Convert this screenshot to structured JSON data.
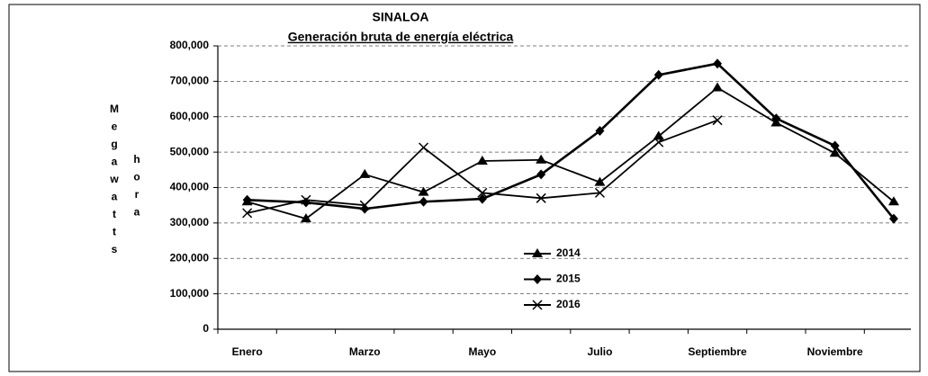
{
  "chart_data": {
    "type": "line",
    "title": "SINALOA",
    "subtitle": "Generación bruta de energía eléctrica",
    "y_label": [
      "Megawatts",
      "hora"
    ],
    "categories": [
      "Enero",
      null,
      "Marzo",
      null,
      "Mayo",
      null,
      "Julio",
      null,
      "Septiembre",
      null,
      "Noviembre",
      null
    ],
    "series": [
      {
        "name": "2014",
        "color": "#000000",
        "marker": "triangle",
        "values": [
          360000,
          312000,
          437000,
          387000,
          475000,
          478000,
          415000,
          545000,
          682000,
          583000,
          497000,
          360000
        ]
      },
      {
        "name": "2015",
        "color": "#000000",
        "marker": "diamond",
        "values": [
          365000,
          358000,
          340000,
          360000,
          368000,
          437000,
          560000,
          718000,
          750000,
          595000,
          518000,
          312000
        ]
      },
      {
        "name": "2016",
        "color": "#000000",
        "marker": "x",
        "values": [
          328000,
          365000,
          350000,
          513000,
          385000,
          370000,
          385000,
          528000,
          590000,
          null,
          null,
          null
        ]
      }
    ],
    "ylim": [
      0,
      800000
    ],
    "yticks": [
      0,
      {
        "value": 100000,
        "label": "100,000"
      },
      {
        "value": 200000,
        "label": "200,000"
      },
      {
        "value": 300000,
        "label": "300,000"
      },
      {
        "value": 400000,
        "label": "400,000"
      },
      {
        "value": 500000,
        "label": "500,000"
      },
      {
        "value": 600000,
        "label": "600,000"
      },
      {
        "value": 700000,
        "label": "700,000"
      },
      {
        "value": 800000,
        "label": "800,000"
      }
    ],
    "grid": true,
    "legend": "center"
  }
}
